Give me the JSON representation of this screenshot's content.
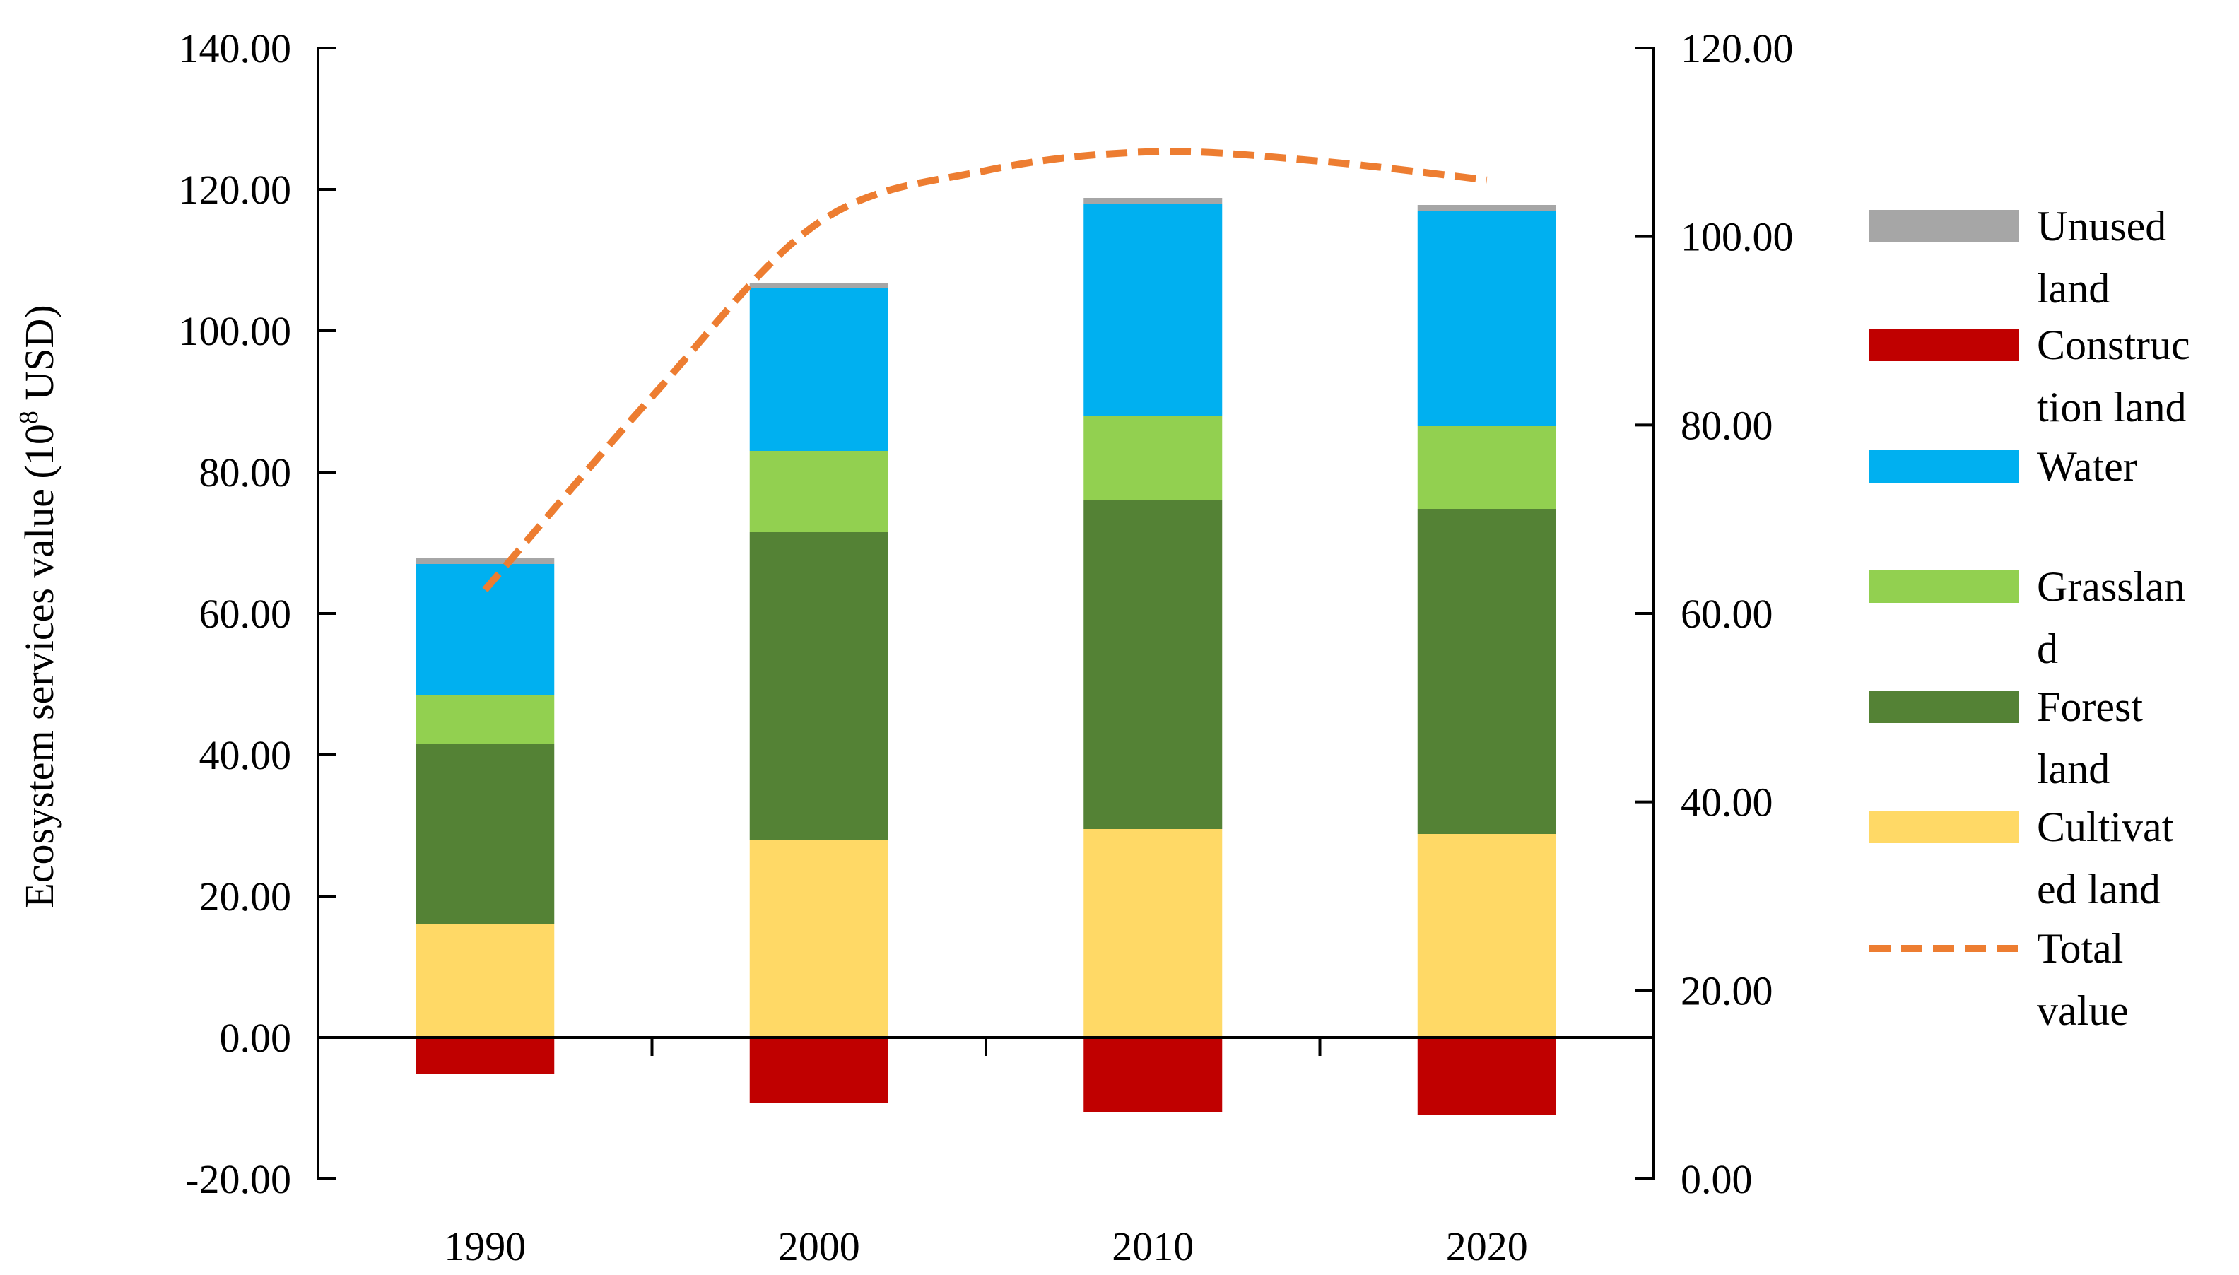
{
  "chart_data": {
    "type": "bar",
    "stacked": true,
    "categories": [
      "1990",
      "2000",
      "2010",
      "2020"
    ],
    "ylabel": "Ecosystem services value (10",
    "ylabel_sup": "8",
    "ylabel_unit": " USD)",
    "ylim": [
      -20,
      140
    ],
    "yticks": [
      "140.00",
      "120.00",
      "100.00",
      "80.00",
      "60.00",
      "40.00",
      "20.00",
      "0.00",
      "-20.00"
    ],
    "ytick_values": [
      140,
      120,
      100,
      80,
      60,
      40,
      20,
      0,
      -20
    ],
    "y2lim": [
      0,
      120
    ],
    "y2ticks": [
      "120.00",
      "100.00",
      "80.00",
      "60.00",
      "40.00",
      "20.00",
      "0.00"
    ],
    "y2tick_values": [
      120,
      100,
      80,
      60,
      40,
      20,
      0
    ],
    "series": [
      {
        "key": "cultivated",
        "name": "Cultivated land",
        "legend_lines": [
          "Cultivat",
          "ed land"
        ],
        "color": "#FFD966",
        "values": [
          16.0,
          28.0,
          29.5,
          28.8
        ]
      },
      {
        "key": "forest",
        "name": "Forest land",
        "legend_lines": [
          "Forest",
          "land"
        ],
        "color": "#548235",
        "values": [
          25.5,
          43.5,
          46.5,
          46.0
        ]
      },
      {
        "key": "grassland",
        "name": "Grassland",
        "legend_lines": [
          "Grasslan",
          "d"
        ],
        "color": "#92D050",
        "values": [
          7.0,
          11.5,
          12.0,
          11.7
        ]
      },
      {
        "key": "water",
        "name": "Water",
        "legend_lines": [
          "Water"
        ],
        "color": "#00B0F0",
        "values": [
          18.5,
          23.0,
          30.0,
          30.5
        ]
      },
      {
        "key": "unused",
        "name": "Unused land",
        "legend_lines": [
          "Unused",
          "land"
        ],
        "color": "#A6A6A6",
        "values": [
          0.8,
          0.8,
          0.8,
          0.8
        ]
      },
      {
        "key": "construction",
        "name": "Construction land",
        "legend_lines": [
          "Construc",
          "tion land"
        ],
        "color": "#C00000",
        "values": [
          -5.2,
          -9.3,
          -10.5,
          -11.0
        ]
      }
    ],
    "line": {
      "name": "Total value",
      "legend_lines": [
        "Total",
        "value"
      ],
      "axis": "secondary",
      "color": "#ED7D31",
      "x": [
        0,
        0.5,
        1,
        1.5,
        2,
        2.5,
        3
      ],
      "values": [
        62.5,
        83.0,
        101.5,
        107.0,
        109.0,
        108.0,
        106.0
      ]
    },
    "legend_order": [
      "unused",
      "construction",
      "water",
      "grassland",
      "forest",
      "cultivated",
      "line"
    ],
    "legend_position": "right"
  }
}
